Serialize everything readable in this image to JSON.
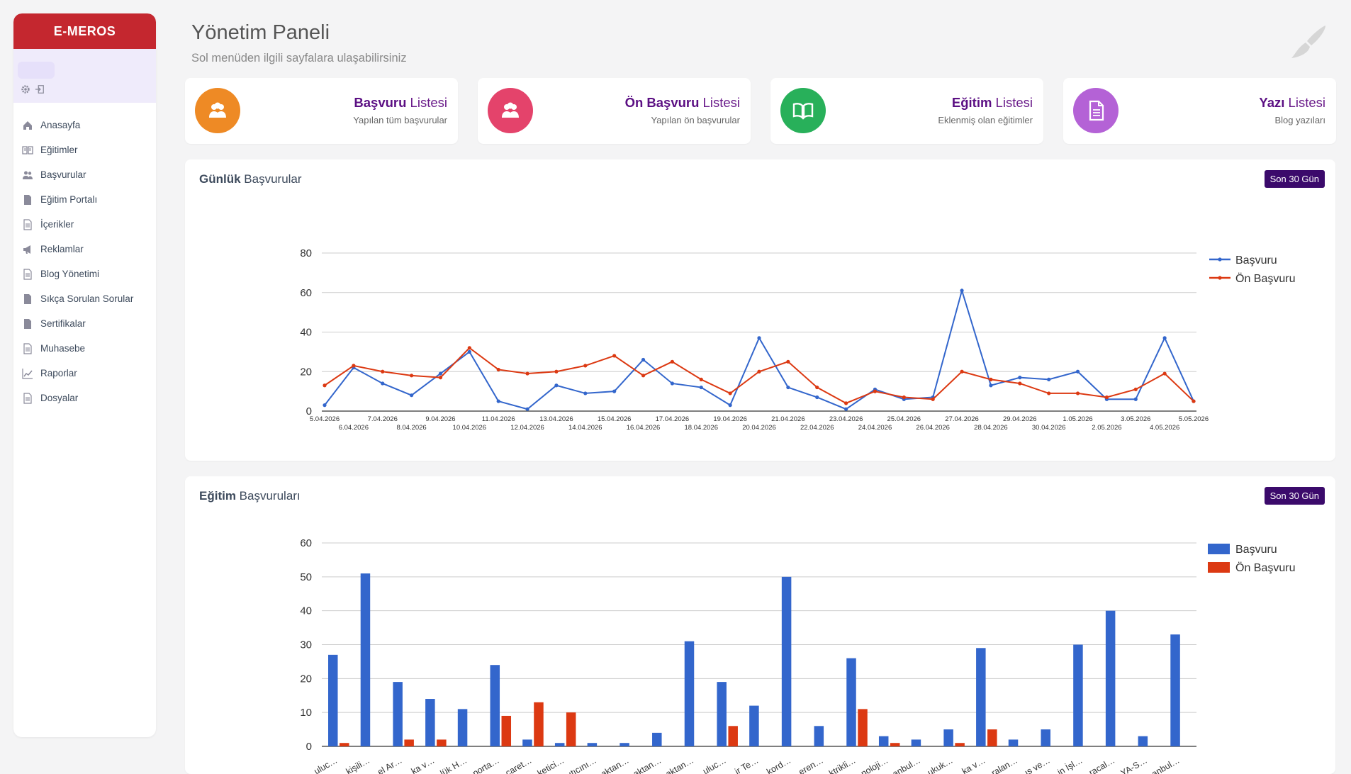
{
  "sidebar": {
    "brand": "E-MEROS",
    "items": [
      {
        "label": "Anasayfa",
        "icon": "home-icon"
      },
      {
        "label": "Eğitimler",
        "icon": "book-icon"
      },
      {
        "label": "Başvurular",
        "icon": "users-icon"
      },
      {
        "label": "Eğitim Portalı",
        "icon": "document-icon"
      },
      {
        "label": "İçerikler",
        "icon": "document-lines-icon"
      },
      {
        "label": "Reklamlar",
        "icon": "megaphone-icon"
      },
      {
        "label": "Blog Yönetimi",
        "icon": "document-lines-icon"
      },
      {
        "label": "Sıkça Sorulan Sorular",
        "icon": "document-icon"
      },
      {
        "label": "Sertifikalar",
        "icon": "document-icon"
      },
      {
        "label": "Muhasebe",
        "icon": "document-lines-icon"
      },
      {
        "label": "Raporlar",
        "icon": "line-chart-icon"
      },
      {
        "label": "Dosyalar",
        "icon": "document-lines-icon"
      }
    ]
  },
  "header": {
    "title": "Yönetim Paneli",
    "subtitle": "Sol menüden ilgili sayfalara ulaşabilirsiniz"
  },
  "cards": [
    {
      "bold": "Başvuru",
      "rest": " Listesi",
      "sub": "Yapılan tüm başvurular",
      "color": "#ee8a25",
      "icon": "users-icon"
    },
    {
      "bold": "Ön Başvuru",
      "rest": " Listesi",
      "sub": "Yapılan ön başvurular",
      "color": "#e4436b",
      "icon": "users-icon"
    },
    {
      "bold": "Eğitim",
      "rest": " Listesi",
      "sub": "Eklenmiş olan eğitimler",
      "color": "#28b05a",
      "icon": "book-icon"
    },
    {
      "bold": "Yazı",
      "rest": " Listesi",
      "sub": "Blog yazıları",
      "color": "#b462d6",
      "icon": "document-icon"
    }
  ],
  "daily_panel": {
    "title_bold": "Günlük",
    "title_rest": " Başvurular",
    "badge": "Son 30 Gün"
  },
  "training_panel": {
    "title_bold": "Eğitim",
    "title_rest": " Başvuruları",
    "badge": "Son 30 Gün"
  },
  "colors": {
    "basvuru": "#3366cc",
    "on_basvuru": "#dc3912"
  },
  "chart_data": [
    {
      "type": "line",
      "x": [
        "5.04.2026",
        "6.04.2026",
        "7.04.2026",
        "8.04.2026",
        "9.04.2026",
        "10.04.2026",
        "11.04.2026",
        "12.04.2026",
        "13.04.2026",
        "14.04.2026",
        "15.04.2026",
        "16.04.2026",
        "17.04.2026",
        "18.04.2026",
        "19.04.2026",
        "20.04.2026",
        "21.04.2026",
        "22.04.2026",
        "23.04.2026",
        "24.04.2026",
        "25.04.2026",
        "26.04.2026",
        "27.04.2026",
        "28.04.2026",
        "29.04.2026",
        "30.04.2026",
        "1.05.2026",
        "2.05.2026",
        "3.05.2026",
        "4.05.2026",
        "5.05.2026"
      ],
      "series": [
        {
          "name": "Başvuru",
          "values": [
            3,
            22,
            14,
            8,
            19,
            30,
            5,
            1,
            13,
            9,
            10,
            26,
            14,
            12,
            3,
            37,
            12,
            7,
            1,
            11,
            6,
            7,
            61,
            13,
            17,
            16,
            20,
            6,
            6,
            37,
            5
          ]
        },
        {
          "name": "Ön Başvuru",
          "values": [
            13,
            23,
            20,
            18,
            17,
            32,
            21,
            19,
            20,
            23,
            28,
            18,
            25,
            16,
            9,
            20,
            25,
            12,
            4,
            10,
            7,
            6,
            20,
            16,
            14,
            9,
            9,
            7,
            11,
            19,
            5
          ]
        }
      ],
      "ylim": [
        0,
        80
      ],
      "yticks": [
        0,
        20,
        40,
        60,
        80
      ],
      "legend": "right",
      "grid": true
    },
    {
      "type": "bar",
      "categories": [
        "…uluc…",
        "…kişili…",
        "…el Ar…",
        "…ka v…",
        "…lük H…",
        "…porta…",
        "…caret…",
        "…ketici…",
        "…ıtıcını…",
        "…aktan…",
        "…aktan…",
        "…aktan…",
        "…uluc…",
        "…ir Te…",
        "…kord…",
        "…eren…",
        "…ktrikli…",
        "…noloji…",
        "…anbul…",
        "…ukuk…",
        "…ka v…",
        "…ralan…",
        "…ıs ve…",
        "…in İşl…",
        "…racal…",
        "…YA-S…",
        "…anbul…"
      ],
      "series": [
        {
          "name": "Başvuru",
          "values": [
            27,
            51,
            19,
            14,
            11,
            24,
            2,
            1,
            1,
            1,
            4,
            31,
            19,
            12,
            50,
            6,
            26,
            3,
            2,
            5,
            29,
            2,
            5,
            30,
            40,
            3,
            33
          ]
        },
        {
          "name": "Ön Başvuru",
          "values": [
            1,
            0,
            2,
            2,
            0,
            9,
            13,
            10,
            0,
            0,
            0,
            0,
            6,
            0,
            0,
            0,
            11,
            1,
            0,
            1,
            5,
            0,
            0,
            0,
            0,
            0,
            0
          ]
        }
      ],
      "ylim": [
        0,
        60
      ],
      "yticks": [
        0,
        10,
        20,
        30,
        40,
        50,
        60
      ],
      "legend": "right",
      "grid": true
    }
  ]
}
